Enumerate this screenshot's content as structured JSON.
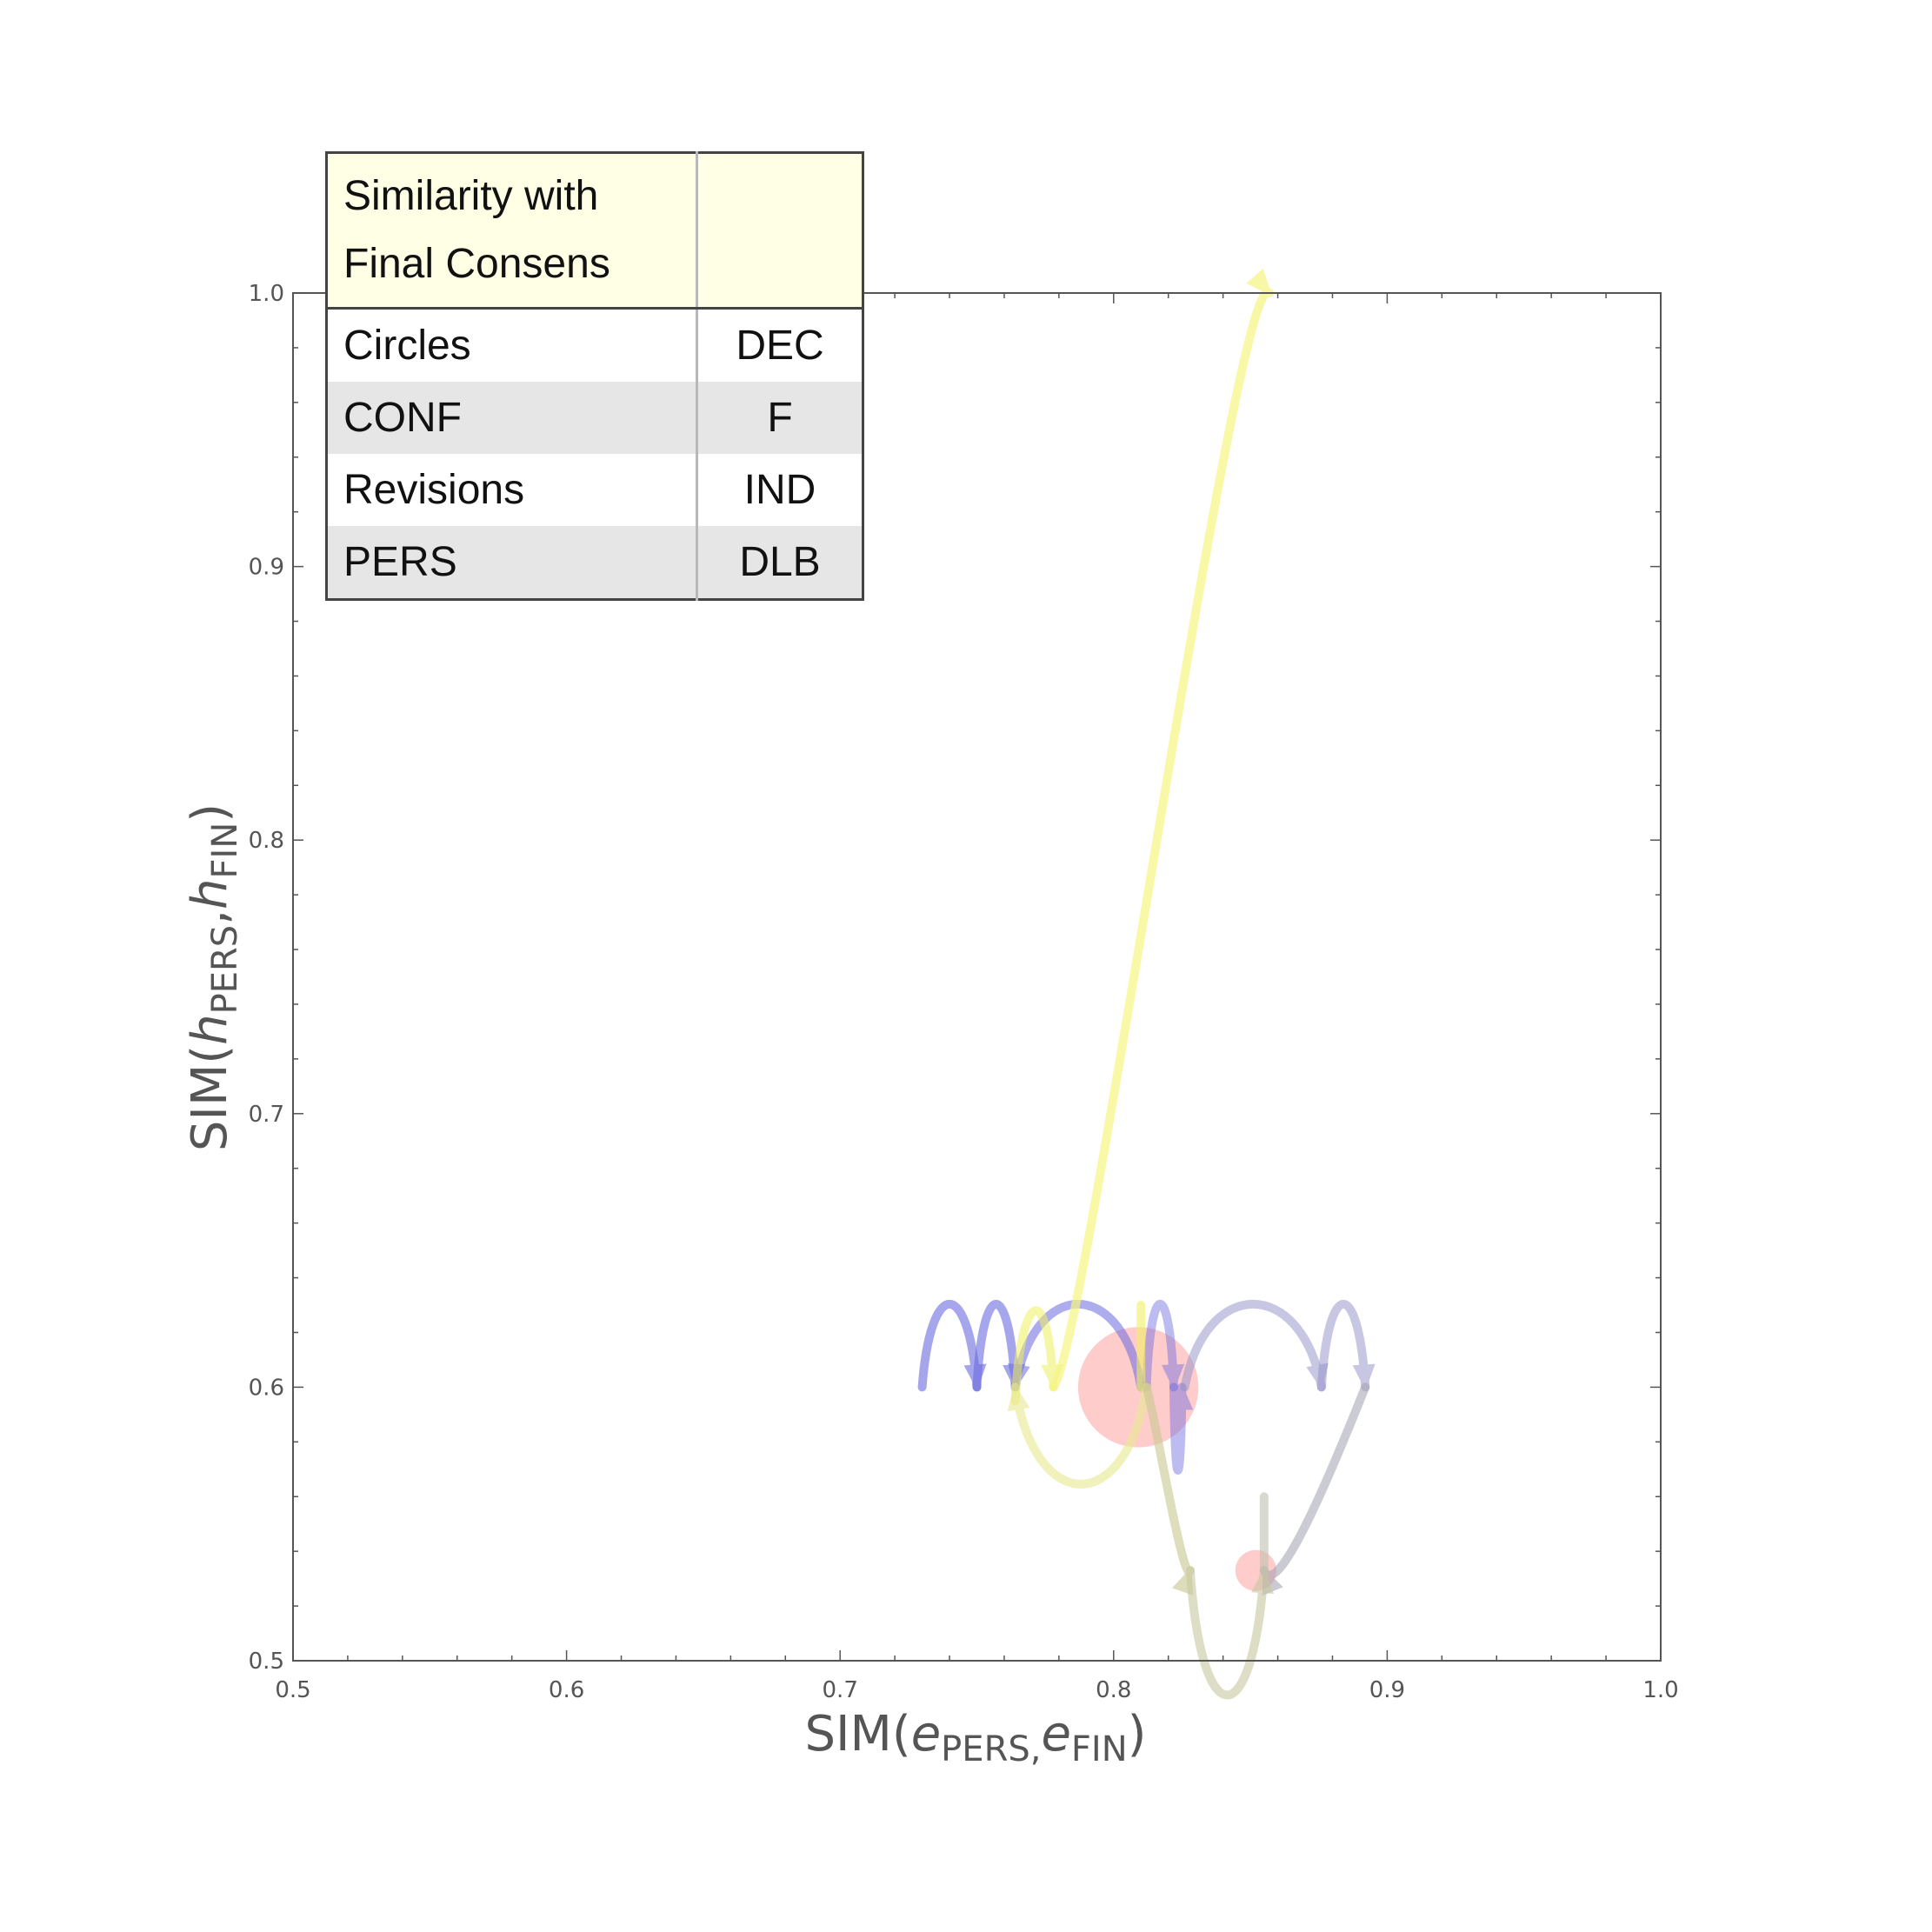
{
  "chart_data": {
    "type": "scatter",
    "title": "",
    "xlabel": {
      "prefix": "SIM(",
      "var1": "e",
      "sub1": "PERS,",
      "var2": "e",
      "sub2": "FIN",
      "suffix": ")"
    },
    "ylabel": {
      "prefix": "SIM(",
      "var1": "h",
      "sub1": "PERS",
      "sep": ",",
      "var2": "h",
      "sub2": "FIN",
      "suffix": ")"
    },
    "xlim": [
      0.5,
      1.0
    ],
    "ylim": [
      0.5,
      1.0
    ],
    "xticks": [
      "0.5",
      "0.6",
      "0.7",
      "0.8",
      "0.9",
      "1.0"
    ],
    "yticks": [
      "0.5",
      "0.6",
      "0.7",
      "0.8",
      "0.9",
      "1.0"
    ],
    "grid": false,
    "legend": {
      "placement": "top-left",
      "header": [
        "Similarity with",
        "Final Consens"
      ],
      "rows": [
        {
          "label": "Circles",
          "value": "DEC"
        },
        {
          "label": "CONF",
          "value": "F"
        },
        {
          "label": "Revisions",
          "value": "IND"
        },
        {
          "label": "PERS",
          "value": "DLB"
        }
      ]
    },
    "arrows": [
      {
        "color": "#6a6ae0",
        "opacity": 0.6,
        "from": [
          0.73,
          0.6
        ],
        "to": [
          0.75,
          0.6
        ],
        "dir": "up",
        "h": 0.03
      },
      {
        "color": "#6a6ae0",
        "opacity": 0.6,
        "from": [
          0.75,
          0.6
        ],
        "to": [
          0.764,
          0.6
        ],
        "dir": "up",
        "h": 0.03
      },
      {
        "color": "#6a6ae0",
        "opacity": 0.55,
        "from": [
          0.81,
          0.6
        ],
        "to": [
          0.764,
          0.6
        ],
        "dir": "up",
        "h": 0.03
      },
      {
        "color": "#6a6ae0",
        "opacity": 0.45,
        "from": [
          0.812,
          0.6
        ],
        "to": [
          0.822,
          0.6
        ],
        "dir": "up",
        "h": 0.03
      },
      {
        "color": "#6a6ae0",
        "opacity": 0.45,
        "from": [
          0.822,
          0.6
        ],
        "to": [
          0.825,
          0.6
        ],
        "dir": "down",
        "h": 0.03
      },
      {
        "color": "#9090c8",
        "opacity": 0.5,
        "from": [
          0.826,
          0.6
        ],
        "to": [
          0.876,
          0.6
        ],
        "dir": "up",
        "h": 0.03
      },
      {
        "color": "#9090c8",
        "opacity": 0.5,
        "from": [
          0.876,
          0.6
        ],
        "to": [
          0.892,
          0.6
        ],
        "dir": "up",
        "h": 0.03
      },
      {
        "color": "#a0a0b0",
        "opacity": 0.55,
        "from": [
          0.892,
          0.6
        ],
        "to": [
          0.855,
          0.533
        ],
        "dir": "down",
        "h": 0.01
      },
      {
        "color": "#f0f060",
        "opacity": 0.55,
        "from": [
          0.764,
          0.595
        ],
        "to": [
          0.778,
          0.6
        ],
        "dir": "up",
        "h": 0.03
      },
      {
        "color": "#e8e890",
        "opacity": 0.6,
        "from": [
          0.812,
          0.6
        ],
        "to": [
          0.764,
          0.6
        ],
        "dir": "down",
        "h": 0.035
      },
      {
        "color": "#f0f060",
        "opacity": 0.6,
        "from": [
          0.81,
          0.63
        ],
        "to": [
          0.81,
          0.6
        ],
        "dir": "down",
        "h": 0.0
      },
      {
        "color": "#c8c890",
        "opacity": 0.6,
        "from": [
          0.812,
          0.6
        ],
        "to": [
          0.828,
          0.533
        ],
        "dir": "down",
        "h": 0.005
      },
      {
        "color": "#c8c8a0",
        "opacity": 0.6,
        "from": [
          0.828,
          0.533
        ],
        "to": [
          0.855,
          0.533
        ],
        "dir": "down",
        "h": 0.045
      },
      {
        "color": "#c0c0b0",
        "opacity": 0.6,
        "from": [
          0.855,
          0.533
        ],
        "to": [
          0.855,
          0.56
        ],
        "dir": "up",
        "h": 0.0
      },
      {
        "color": "#f5f580",
        "opacity": 0.7,
        "from": [
          0.778,
          0.6
        ],
        "to": [
          0.857,
          1.0
        ],
        "dir": "up",
        "h": 0.01
      }
    ],
    "circles": [
      {
        "x": 0.809,
        "y": 0.6,
        "r": 0.022,
        "color": "#ffb0b0",
        "opacity": 0.65
      },
      {
        "x": 0.852,
        "y": 0.533,
        "r": 0.0075,
        "color": "#ffb0b0",
        "opacity": 0.65
      }
    ]
  }
}
